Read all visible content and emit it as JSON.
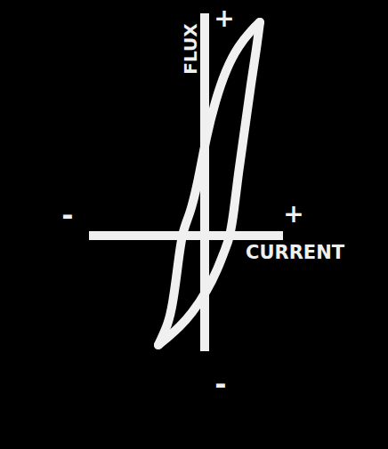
{
  "chart_data": {
    "type": "line",
    "x_label": "CURRENT",
    "y_label": "FLUX",
    "x_end_labels": [
      "-",
      "+"
    ],
    "y_end_labels": [
      "-",
      "+"
    ],
    "x": [
      -0.52,
      -0.4,
      -0.28,
      -0.14,
      0.02,
      0.14,
      0.22,
      0.28,
      0.33,
      0.38,
      0.45,
      0.52,
      0.58,
      0.62,
      0.52,
      0.38,
      0.24,
      0.12,
      0.02,
      -0.08,
      -0.17,
      -0.25,
      -0.31,
      -0.36,
      -0.42,
      -0.52
    ],
    "values": [
      -1.23,
      -1.13,
      -1.02,
      -0.86,
      -0.62,
      -0.38,
      -0.18,
      0.0,
      0.3,
      0.7,
      1.2,
      1.7,
      2.1,
      2.4,
      2.3,
      2.12,
      1.85,
      1.5,
      1.1,
      0.6,
      0.25,
      0.0,
      -0.4,
      -0.75,
      -1.0,
      -1.23
    ],
    "color": "#f0f0f0",
    "xlim": [
      -1.3,
      0.88
    ],
    "ylim": [
      -1.3,
      2.5
    ],
    "tick_labels": false,
    "grid": false
  }
}
